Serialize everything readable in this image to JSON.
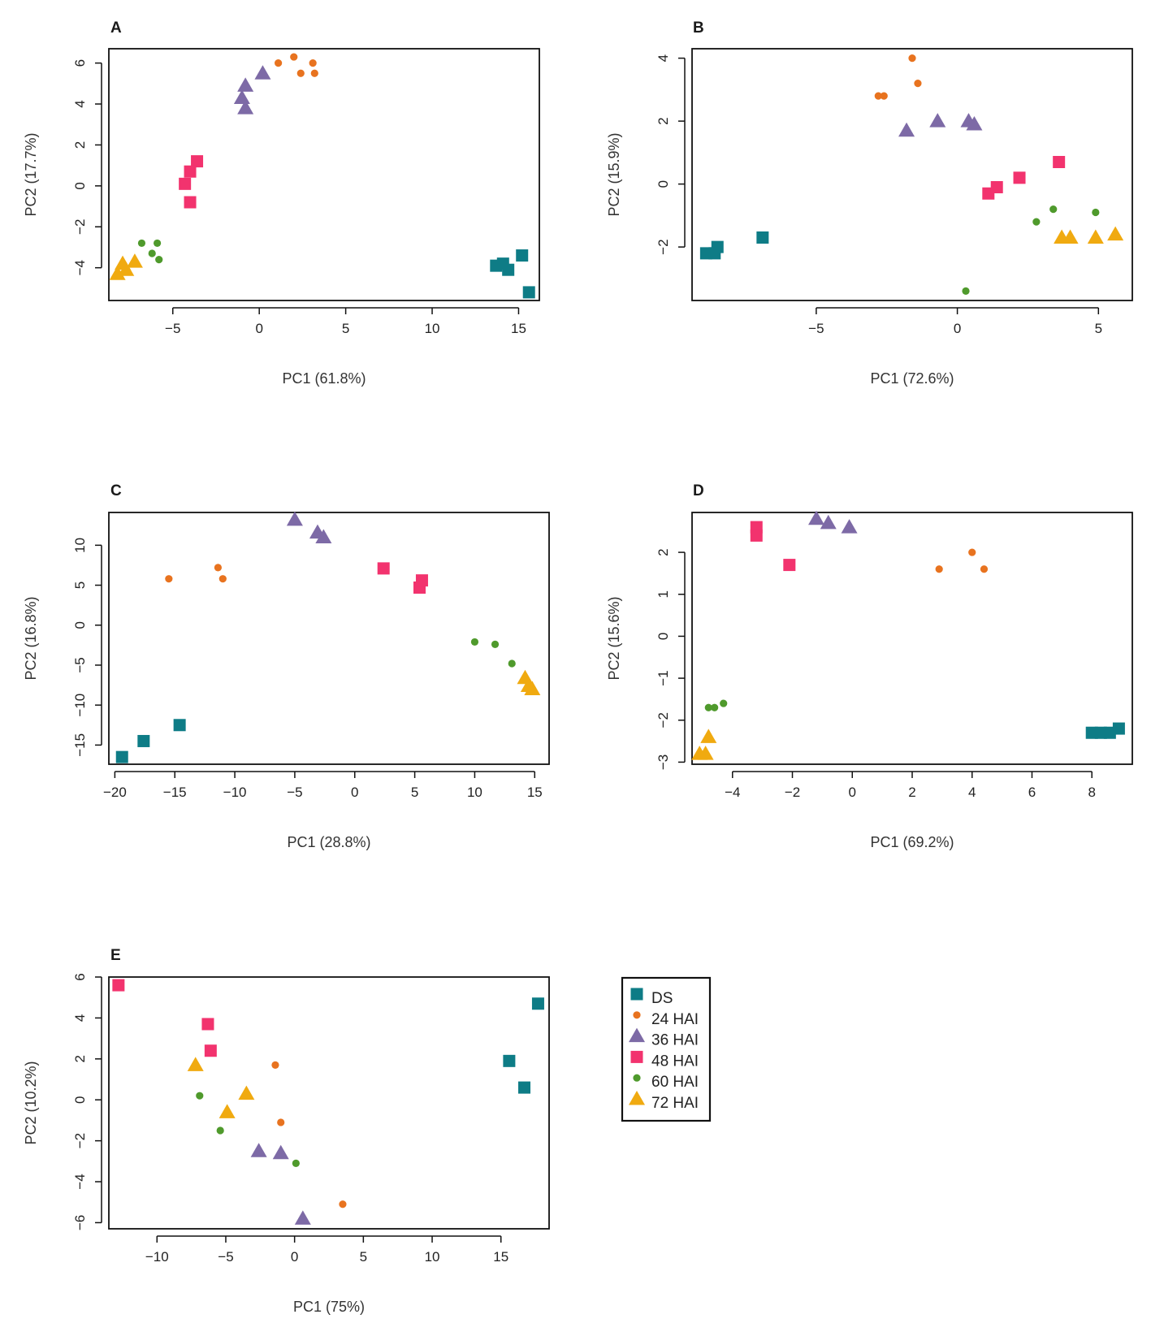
{
  "chart_data": [
    {
      "type": "scatter",
      "panel": "A",
      "xlabel": "PC1 (61.8%)",
      "ylabel": "PC2 (17.7%)",
      "xlim": [
        -8.7,
        16.2
      ],
      "ylim": [
        -5.6,
        6.7
      ],
      "xticks": [
        -5,
        0,
        5,
        10,
        15
      ],
      "yticks": [
        -4,
        -2,
        0,
        2,
        4,
        6
      ],
      "series": [
        {
          "name": "DS",
          "points": [
            [
              13.7,
              -3.9
            ],
            [
              14.1,
              -3.8
            ],
            [
              14.4,
              -4.1
            ],
            [
              15.2,
              -3.4
            ],
            [
              15.6,
              -5.2
            ]
          ]
        },
        {
          "name": "24 HAI",
          "points": [
            [
              1.1,
              6.0
            ],
            [
              2.0,
              6.3
            ],
            [
              2.4,
              5.5
            ],
            [
              3.1,
              6.0
            ],
            [
              3.2,
              5.5
            ]
          ]
        },
        {
          "name": "36 HAI",
          "points": [
            [
              0.2,
              5.5
            ],
            [
              -0.8,
              4.9
            ],
            [
              -1.0,
              4.3
            ],
            [
              -0.8,
              3.8
            ]
          ]
        },
        {
          "name": "48 HAI",
          "points": [
            [
              -3.6,
              1.2
            ],
            [
              -4.0,
              0.7
            ],
            [
              -4.3,
              0.1
            ],
            [
              -4.0,
              -0.8
            ]
          ]
        },
        {
          "name": "60 HAI",
          "points": [
            [
              -6.8,
              -2.8
            ],
            [
              -6.2,
              -3.3
            ],
            [
              -5.9,
              -2.8
            ],
            [
              -5.8,
              -3.6
            ]
          ]
        },
        {
          "name": "72 HAI",
          "points": [
            [
              -8.2,
              -4.3
            ],
            [
              -7.7,
              -4.1
            ],
            [
              -7.9,
              -3.8
            ],
            [
              -7.2,
              -3.7
            ]
          ]
        }
      ]
    },
    {
      "type": "scatter",
      "panel": "B",
      "xlabel": "PC1 (72.6%)",
      "ylabel": "PC2 (15.9%)",
      "xlim": [
        -9.4,
        6.2
      ],
      "ylim": [
        -3.7,
        4.3
      ],
      "xticks": [
        -5,
        0,
        5
      ],
      "yticks": [
        -2,
        0,
        2,
        4
      ],
      "series": [
        {
          "name": "DS",
          "points": [
            [
              -8.9,
              -2.2
            ],
            [
              -8.6,
              -2.2
            ],
            [
              -8.5,
              -2.0
            ],
            [
              -6.9,
              -1.7
            ]
          ]
        },
        {
          "name": "24 HAI",
          "points": [
            [
              -2.8,
              2.8
            ],
            [
              -1.6,
              4.0
            ],
            [
              -1.4,
              3.2
            ],
            [
              -2.6,
              2.8
            ]
          ]
        },
        {
          "name": "36 HAI",
          "points": [
            [
              -1.8,
              1.7
            ],
            [
              -0.7,
              2.0
            ],
            [
              0.4,
              2.0
            ],
            [
              0.6,
              1.9
            ]
          ]
        },
        {
          "name": "48 HAI",
          "points": [
            [
              1.1,
              -0.3
            ],
            [
              1.4,
              -0.1
            ],
            [
              2.2,
              0.2
            ],
            [
              3.6,
              0.7
            ]
          ]
        },
        {
          "name": "60 HAI",
          "points": [
            [
              0.3,
              -3.4
            ],
            [
              2.8,
              -1.2
            ],
            [
              3.4,
              -0.8
            ],
            [
              4.9,
              -0.9
            ]
          ]
        },
        {
          "name": "72 HAI",
          "points": [
            [
              3.7,
              -1.7
            ],
            [
              4.0,
              -1.7
            ],
            [
              4.9,
              -1.7
            ],
            [
              5.6,
              -1.6
            ]
          ]
        }
      ]
    },
    {
      "type": "scatter",
      "panel": "C",
      "xlabel": "PC1 (28.8%)",
      "ylabel": "PC2 (16.8%)",
      "xlim": [
        -20.5,
        16.2
      ],
      "ylim": [
        -17.4,
        14.1
      ],
      "xticks": [
        -20,
        -15,
        -10,
        -5,
        0,
        5,
        10,
        15
      ],
      "yticks": [
        -15,
        -10,
        -5,
        0,
        5,
        10
      ],
      "series": [
        {
          "name": "DS",
          "points": [
            [
              -19.4,
              -16.5
            ],
            [
              -17.6,
              -14.5
            ],
            [
              -14.6,
              -12.5
            ]
          ]
        },
        {
          "name": "24 HAI",
          "points": [
            [
              -15.5,
              5.8
            ],
            [
              -11.4,
              7.2
            ],
            [
              -11.0,
              5.8
            ]
          ]
        },
        {
          "name": "36 HAI",
          "points": [
            [
              -5.0,
              13.2
            ],
            [
              -3.1,
              11.6
            ],
            [
              -2.6,
              11.0
            ]
          ]
        },
        {
          "name": "48 HAI",
          "points": [
            [
              2.4,
              7.1
            ],
            [
              5.4,
              4.7
            ],
            [
              5.6,
              5.6
            ]
          ]
        },
        {
          "name": "60 HAI",
          "points": [
            [
              10.0,
              -2.1
            ],
            [
              11.7,
              -2.4
            ],
            [
              13.1,
              -4.8
            ]
          ]
        },
        {
          "name": "72 HAI",
          "points": [
            [
              14.2,
              -6.6
            ],
            [
              14.5,
              -7.6
            ],
            [
              14.8,
              -8.0
            ]
          ]
        }
      ]
    },
    {
      "type": "scatter",
      "panel": "D",
      "xlabel": "PC1 (69.2%)",
      "ylabel": "PC2 (15.6%)",
      "xlim": [
        -5.35,
        9.35
      ],
      "ylim": [
        -3.05,
        2.95
      ],
      "xticks": [
        -4,
        -2,
        0,
        2,
        4,
        6,
        8
      ],
      "yticks": [
        -3,
        -2,
        -1,
        0,
        1,
        2
      ],
      "series": [
        {
          "name": "DS",
          "points": [
            [
              8.0,
              -2.3
            ],
            [
              8.3,
              -2.3
            ],
            [
              8.6,
              -2.3
            ],
            [
              8.9,
              -2.2
            ]
          ]
        },
        {
          "name": "24 HAI",
          "points": [
            [
              2.9,
              1.6
            ],
            [
              4.0,
              2.0
            ],
            [
              4.4,
              1.6
            ]
          ]
        },
        {
          "name": "36 HAI",
          "points": [
            [
              -1.2,
              2.8
            ],
            [
              -0.8,
              2.7
            ],
            [
              -0.1,
              2.6
            ]
          ]
        },
        {
          "name": "48 HAI",
          "points": [
            [
              -3.2,
              2.6
            ],
            [
              -3.2,
              2.4
            ],
            [
              -2.1,
              1.7
            ]
          ]
        },
        {
          "name": "60 HAI",
          "points": [
            [
              -4.8,
              -1.7
            ],
            [
              -4.6,
              -1.7
            ],
            [
              -4.3,
              -1.6
            ]
          ]
        },
        {
          "name": "72 HAI",
          "points": [
            [
              -5.1,
              -2.8
            ],
            [
              -4.9,
              -2.8
            ],
            [
              -4.8,
              -2.4
            ]
          ]
        }
      ]
    },
    {
      "type": "scatter",
      "panel": "E",
      "xlabel": "PC1 (75%)",
      "ylabel": "PC2 (10.2%)",
      "xlim": [
        -13.5,
        18.5
      ],
      "ylim": [
        -6.3,
        6.0
      ],
      "xticks": [
        -10,
        -5,
        0,
        5,
        10,
        15
      ],
      "yticks": [
        -6,
        -4,
        -2,
        0,
        2,
        4,
        6
      ],
      "series": [
        {
          "name": "DS",
          "points": [
            [
              15.6,
              1.9
            ],
            [
              16.7,
              0.6
            ],
            [
              17.7,
              4.7
            ]
          ]
        },
        {
          "name": "24 HAI",
          "points": [
            [
              -1.4,
              1.7
            ],
            [
              -1.0,
              -1.1
            ],
            [
              3.5,
              -5.1
            ]
          ]
        },
        {
          "name": "36 HAI",
          "points": [
            [
              -2.6,
              -2.5
            ],
            [
              -1.0,
              -2.6
            ],
            [
              0.6,
              -5.8
            ]
          ]
        },
        {
          "name": "48 HAI",
          "points": [
            [
              -12.8,
              5.6
            ],
            [
              -6.3,
              3.7
            ],
            [
              -6.1,
              2.4
            ]
          ]
        },
        {
          "name": "60 HAI",
          "points": [
            [
              -6.9,
              0.2
            ],
            [
              -5.4,
              -1.5
            ],
            [
              0.1,
              -3.1
            ]
          ]
        },
        {
          "name": "72 HAI",
          "points": [
            [
              -7.2,
              1.7
            ],
            [
              -4.9,
              -0.6
            ],
            [
              -3.5,
              0.3
            ]
          ]
        }
      ]
    }
  ],
  "legend": {
    "entries": [
      {
        "label": "DS",
        "marker": "square",
        "color": "#0e7c86"
      },
      {
        "label": "24 HAI",
        "marker": "circle",
        "color": "#e8731f"
      },
      {
        "label": "36 HAI",
        "marker": "triangle",
        "color": "#7d6aa6"
      },
      {
        "label": "48 HAI",
        "marker": "square",
        "color": "#f2336e"
      },
      {
        "label": "60 HAI",
        "marker": "circle",
        "color": "#4f9a2c"
      },
      {
        "label": "72 HAI",
        "marker": "triangle",
        "color": "#f0aa10"
      }
    ]
  },
  "styles": {
    "DS": {
      "marker": "square",
      "color": "#0e7c86"
    },
    "24 HAI": {
      "marker": "circle",
      "color": "#e8731f"
    },
    "36 HAI": {
      "marker": "triangle",
      "color": "#7d6aa6"
    },
    "48 HAI": {
      "marker": "square",
      "color": "#f2336e"
    },
    "60 HAI": {
      "marker": "circle",
      "color": "#4f9a2c"
    },
    "72 HAI": {
      "marker": "triangle",
      "color": "#f0aa10"
    }
  }
}
